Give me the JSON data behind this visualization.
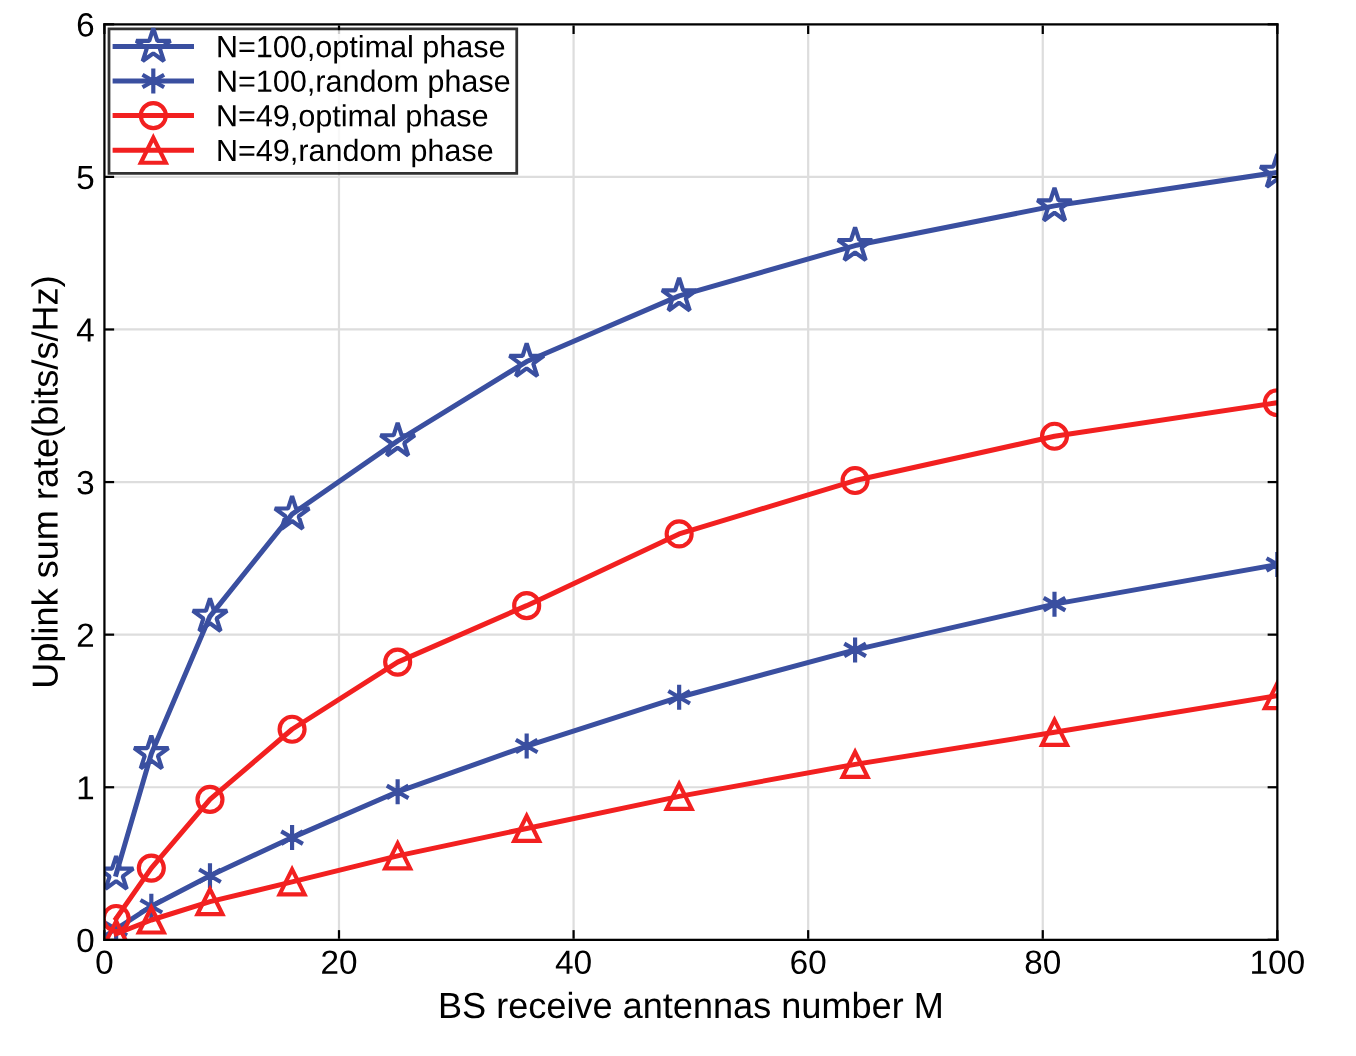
{
  "chart_data": {
    "type": "line",
    "xlabel": "BS receive antennas number M",
    "ylabel": "Uplink sum rate(bits/s/Hz)",
    "x": [
      1,
      4,
      9,
      16,
      25,
      36,
      49,
      64,
      81,
      100
    ],
    "xlim": [
      0,
      100
    ],
    "xticks": [
      0,
      20,
      40,
      60,
      80,
      100
    ],
    "ylim": [
      0,
      6
    ],
    "yticks": [
      0,
      1,
      2,
      3,
      4,
      5,
      6
    ],
    "grid": true,
    "legend": "top left",
    "line_style": "solid",
    "series": [
      {
        "name": "N=100,optimal phase",
        "color": "#3a4fa0",
        "marker": "star",
        "values": [
          0.43,
          1.22,
          2.12,
          2.79,
          3.27,
          3.79,
          4.22,
          4.55,
          4.81,
          5.03
        ]
      },
      {
        "name": "N=100,random phase",
        "color": "#3a4fa0",
        "marker": "cross",
        "values": [
          0.07,
          0.22,
          0.42,
          0.67,
          0.97,
          1.27,
          1.59,
          1.9,
          2.2,
          2.46
        ]
      },
      {
        "name": "N=49,optimal phase",
        "color": "#f22020",
        "marker": "circle",
        "values": [
          0.14,
          0.47,
          0.92,
          1.38,
          1.82,
          2.19,
          2.66,
          3.01,
          3.3,
          3.52
        ]
      },
      {
        "name": "N=49,random phase",
        "color": "#f22020",
        "marker": "triangle",
        "values": [
          0.04,
          0.13,
          0.25,
          0.38,
          0.55,
          0.73,
          0.94,
          1.15,
          1.36,
          1.6
        ]
      }
    ]
  }
}
